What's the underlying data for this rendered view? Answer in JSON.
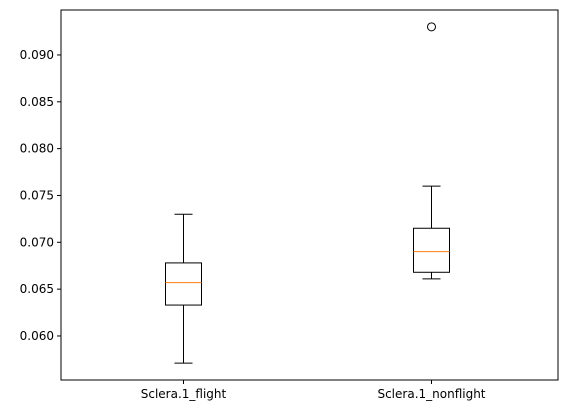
{
  "chart_data": {
    "type": "boxplot",
    "title": "",
    "xlabel": "",
    "ylabel": "",
    "ylim": [
      0.0553,
      0.0948
    ],
    "yticks": [
      0.06,
      0.065,
      0.07,
      0.075,
      0.08,
      0.085,
      0.09
    ],
    "ytick_labels": [
      "0.060",
      "0.065",
      "0.070",
      "0.075",
      "0.080",
      "0.085",
      "0.090"
    ],
    "categories": [
      "Sclera.1_flight",
      "Sclera.1_nonflight"
    ],
    "boxes": [
      {
        "label": "Sclera.1_flight",
        "whisker_low": 0.0571,
        "q1": 0.0633,
        "median": 0.0657,
        "q3": 0.0678,
        "whisker_high": 0.073,
        "outliers": []
      },
      {
        "label": "Sclera.1_nonflight",
        "whisker_low": 0.0661,
        "q1": 0.0668,
        "median": 0.069,
        "q3": 0.0715,
        "whisker_high": 0.076,
        "outliers": [
          0.093
        ]
      }
    ],
    "colors": {
      "box": "#000000",
      "median": "#ff7f0e",
      "axes": "#000000",
      "background": "#ffffff"
    }
  }
}
